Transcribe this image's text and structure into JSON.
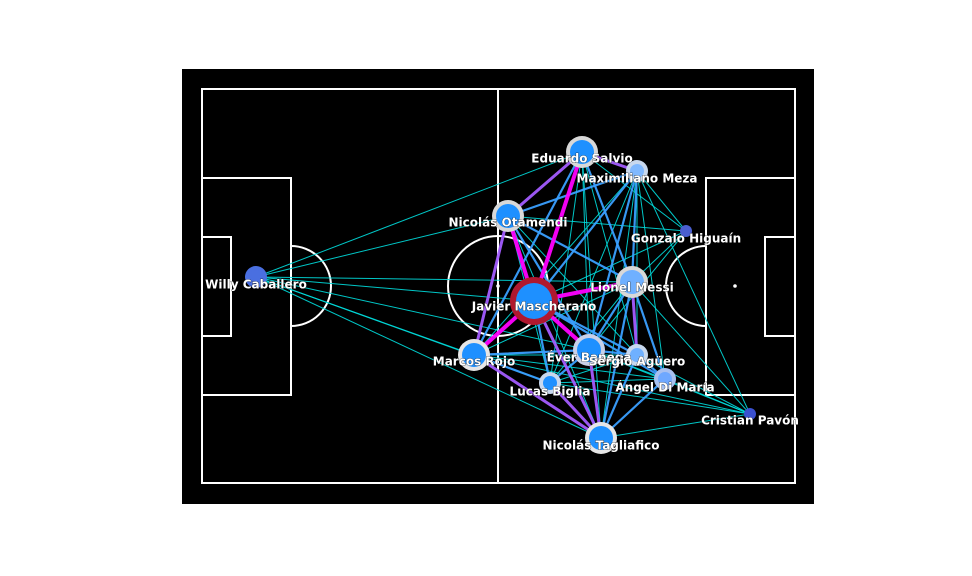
{
  "players": [
    {
      "id": "caballero",
      "name": "Willy Caballero",
      "color": "#4a6fe0",
      "ring": "#4a6fe0",
      "size": "small"
    },
    {
      "id": "salvio",
      "name": "Eduardo Salvio",
      "color": "#1e90ff",
      "ring": "#d8d8d8",
      "size": "medium"
    },
    {
      "id": "meza",
      "name": "Maximiliano Meza",
      "color": "#7fb8ff",
      "ring": "#c8d8ee",
      "size": "small"
    },
    {
      "id": "otamendi",
      "name": "Nicolás Otamendi",
      "color": "#1e90ff",
      "ring": "#d8d8d8",
      "size": "medium"
    },
    {
      "id": "higuain",
      "name": "Gonzalo Higuaín",
      "color": "#4a5fd0",
      "ring": "#4a5fd0",
      "size": "tiny"
    },
    {
      "id": "mascherano",
      "name": "Javier Mascherano",
      "color": "#1e90ff",
      "ring": "#b0182f",
      "size": "large"
    },
    {
      "id": "messi",
      "name": "Lionel Messi",
      "color": "#6fb0ff",
      "ring": "#d8d8d8",
      "size": "medium"
    },
    {
      "id": "rojo",
      "name": "Marcos Rojo",
      "color": "#1e90ff",
      "ring": "#e6e6e6",
      "size": "medium"
    },
    {
      "id": "banega",
      "name": "Éver Banega",
      "color": "#1e90ff",
      "ring": "#c8d0e8",
      "size": "medium"
    },
    {
      "id": "aguero",
      "name": "Sergio Agüero",
      "color": "#6fb0ff",
      "ring": "#c8d8ee",
      "size": "small"
    },
    {
      "id": "dimaria",
      "name": "Ángel Di María",
      "color": "#6fa8ff",
      "ring": "#a8c0f0",
      "size": "small"
    },
    {
      "id": "biglia",
      "name": "Lucas Biglia",
      "color": "#1e90ff",
      "ring": "#c8d8ee",
      "size": "small"
    },
    {
      "id": "pavon",
      "name": "Cristian Pavón",
      "color": "#3a50d0",
      "ring": "#3a50d0",
      "size": "tiny"
    },
    {
      "id": "tagliafico",
      "name": "Nicolás Tagliafico",
      "color": "#1e90ff",
      "ring": "#e6e6e6",
      "size": "medium"
    }
  ],
  "links": [
    {
      "from": "mascherano",
      "to": "salvio",
      "strength": "very-strong"
    },
    {
      "from": "mascherano",
      "to": "rojo",
      "strength": "very-strong"
    },
    {
      "from": "mascherano",
      "to": "otamendi",
      "strength": "very-strong"
    },
    {
      "from": "mascherano",
      "to": "banega",
      "strength": "very-strong"
    },
    {
      "from": "mascherano",
      "to": "messi",
      "strength": "very-strong"
    },
    {
      "from": "mascherano",
      "to": "tagliafico",
      "strength": "strong"
    },
    {
      "from": "otamendi",
      "to": "rojo",
      "strength": "strong"
    },
    {
      "from": "otamendi",
      "to": "salvio",
      "strength": "strong"
    },
    {
      "from": "salvio",
      "to": "meza",
      "strength": "strong"
    },
    {
      "from": "rojo",
      "to": "tagliafico",
      "strength": "strong"
    },
    {
      "from": "banega",
      "to": "tagliafico",
      "strength": "strong"
    },
    {
      "from": "messi",
      "to": "aguero",
      "strength": "strong"
    },
    {
      "from": "biglia",
      "to": "tagliafico",
      "strength": "strong"
    },
    {
      "from": "mascherano",
      "to": "biglia",
      "strength": "medium"
    },
    {
      "from": "mascherano",
      "to": "aguero",
      "strength": "medium"
    },
    {
      "from": "mascherano",
      "to": "dimaria",
      "strength": "medium"
    },
    {
      "from": "mascherano",
      "to": "meza",
      "strength": "medium"
    },
    {
      "from": "otamendi",
      "to": "meza",
      "strength": "medium"
    },
    {
      "from": "otamendi",
      "to": "messi",
      "strength": "medium"
    },
    {
      "from": "otamendi",
      "to": "banega",
      "strength": "medium"
    },
    {
      "from": "salvio",
      "to": "messi",
      "strength": "medium"
    },
    {
      "from": "salvio",
      "to": "rojo",
      "strength": "medium"
    },
    {
      "from": "meza",
      "to": "messi",
      "strength": "medium"
    },
    {
      "from": "meza",
      "to": "banega",
      "strength": "medium"
    },
    {
      "from": "messi",
      "to": "banega",
      "strength": "medium"
    },
    {
      "from": "messi",
      "to": "dimaria",
      "strength": "medium"
    },
    {
      "from": "messi",
      "to": "tagliafico",
      "strength": "medium"
    },
    {
      "from": "rojo",
      "to": "biglia",
      "strength": "medium"
    },
    {
      "from": "rojo",
      "to": "banega",
      "strength": "medium"
    },
    {
      "from": "biglia",
      "to": "banega",
      "strength": "medium"
    },
    {
      "from": "banega",
      "to": "aguero",
      "strength": "medium"
    },
    {
      "from": "aguero",
      "to": "dimaria",
      "strength": "medium"
    },
    {
      "from": "dimaria",
      "to": "tagliafico",
      "strength": "medium"
    },
    {
      "from": "aguero",
      "to": "tagliafico",
      "strength": "medium"
    },
    {
      "from": "caballero",
      "to": "salvio",
      "strength": "weak"
    },
    {
      "from": "caballero",
      "to": "otamendi",
      "strength": "weak"
    },
    {
      "from": "caballero",
      "to": "mascherano",
      "strength": "weak"
    },
    {
      "from": "caballero",
      "to": "rojo",
      "strength": "weak"
    },
    {
      "from": "caballero",
      "to": "biglia",
      "strength": "weak"
    },
    {
      "from": "caballero",
      "to": "banega",
      "strength": "weak"
    },
    {
      "from": "caballero",
      "to": "tagliafico",
      "strength": "weak"
    },
    {
      "from": "caballero",
      "to": "messi",
      "strength": "weak"
    },
    {
      "from": "higuain",
      "to": "meza",
      "strength": "weak"
    },
    {
      "from": "higuain",
      "to": "messi",
      "strength": "weak"
    },
    {
      "from": "higuain",
      "to": "mascherano",
      "strength": "weak"
    },
    {
      "from": "higuain",
      "to": "banega",
      "strength": "weak"
    },
    {
      "from": "higuain",
      "to": "otamendi",
      "strength": "weak"
    },
    {
      "from": "higuain",
      "to": "salvio",
      "strength": "weak"
    },
    {
      "from": "pavon",
      "to": "meza",
      "strength": "weak"
    },
    {
      "from": "pavon",
      "to": "tagliafico",
      "strength": "weak"
    },
    {
      "from": "pavon",
      "to": "dimaria",
      "strength": "weak"
    },
    {
      "from": "pavon",
      "to": "aguero",
      "strength": "weak"
    },
    {
      "from": "pavon",
      "to": "biglia",
      "strength": "weak"
    },
    {
      "from": "pavon",
      "to": "rojo",
      "strength": "weak"
    },
    {
      "from": "pavon",
      "to": "banega",
      "strength": "weak"
    },
    {
      "from": "pavon",
      "to": "messi",
      "strength": "weak"
    },
    {
      "from": "meza",
      "to": "tagliafico",
      "strength": "weak"
    },
    {
      "from": "meza",
      "to": "aguero",
      "strength": "weak"
    },
    {
      "from": "meza",
      "to": "dimaria",
      "strength": "weak"
    },
    {
      "from": "meza",
      "to": "biglia",
      "strength": "weak"
    },
    {
      "from": "meza",
      "to": "rojo",
      "strength": "weak"
    },
    {
      "from": "salvio",
      "to": "banega",
      "strength": "weak"
    },
    {
      "from": "salvio",
      "to": "aguero",
      "strength": "weak"
    },
    {
      "from": "salvio",
      "to": "tagliafico",
      "strength": "weak"
    },
    {
      "from": "salvio",
      "to": "biglia",
      "strength": "weak"
    },
    {
      "from": "otamendi",
      "to": "tagliafico",
      "strength": "weak"
    },
    {
      "from": "otamendi",
      "to": "biglia",
      "strength": "weak"
    },
    {
      "from": "otamendi",
      "to": "aguero",
      "strength": "weak"
    },
    {
      "from": "rojo",
      "to": "messi",
      "strength": "weak"
    },
    {
      "from": "rojo",
      "to": "aguero",
      "strength": "weak"
    },
    {
      "from": "rojo",
      "to": "dimaria",
      "strength": "weak"
    },
    {
      "from": "biglia",
      "to": "aguero",
      "strength": "weak"
    },
    {
      "from": "biglia",
      "to": "dimaria",
      "strength": "weak"
    },
    {
      "from": "biglia",
      "to": "messi",
      "strength": "weak"
    },
    {
      "from": "banega",
      "to": "dimaria",
      "strength": "weak"
    }
  ],
  "link_colors": {
    "very-strong": "#ff00ff",
    "strong": "#a45cff",
    "medium": "#3aa0ff",
    "weak": "#00dcdc"
  },
  "pitch_color": "#000000",
  "line_color": "#ffffff"
}
